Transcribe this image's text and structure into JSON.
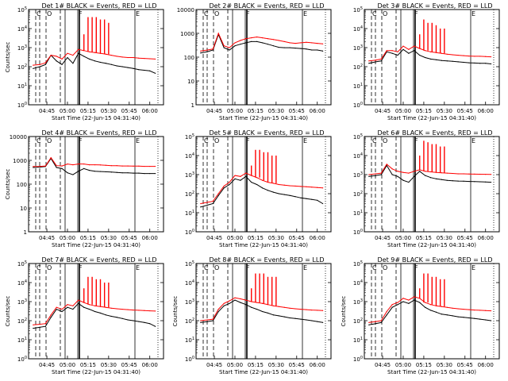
{
  "figure": {
    "title_text": "Det ## BLACK = Events, RED = LLD",
    "xlabel": "Start Time (22-Jun-15 04:31:40)",
    "ylabel": "Counts/sec",
    "x_tick_labels": [
      "04:45",
      "05:00",
      "05:15",
      "05:30",
      "05:45",
      "06:00"
    ]
  },
  "chart_data": [
    {
      "type": "line",
      "panel": 1,
      "title": "Det 1# BLACK = Events, RED = LLD",
      "xlabel": "Start Time (22-Jun-15 04:31:40)",
      "ylabel": "Counts/sec",
      "yscale": "log",
      "ylim": [
        1,
        100000
      ],
      "yticks": [
        "10^0",
        "10^1",
        "10^2",
        "10^3",
        "10^4",
        "10^5"
      ],
      "xlim": [
        "04:31:40",
        "06:10"
      ],
      "x": [
        "04:35",
        "04:40",
        "04:44",
        "04:48",
        "04:52",
        "04:56",
        "05:00",
        "05:04",
        "05:08",
        "05:12",
        "05:16",
        "05:20",
        "05:24",
        "05:28",
        "05:32",
        "05:36",
        "05:40",
        "05:44",
        "05:48",
        "05:52",
        "05:56",
        "06:00",
        "06:04"
      ],
      "series": [
        {
          "name": "BLACK = Events",
          "color": "#000000",
          "values": [
            80,
            100,
            130,
            400,
            200,
            130,
            300,
            150,
            500,
            350,
            250,
            200,
            170,
            150,
            130,
            110,
            100,
            90,
            80,
            70,
            65,
            60,
            45
          ]
        },
        {
          "name": "RED = LLD",
          "color": "#ff0000",
          "values": [
            120,
            130,
            160,
            400,
            350,
            250,
            500,
            400,
            800,
            700,
            600,
            550,
            500,
            450,
            400,
            350,
            320,
            300,
            300,
            280,
            270,
            260,
            250
          ]
        }
      ],
      "spikes": {
        "series": "RED = LLD",
        "x": [
          "05:12",
          "05:15",
          "05:18",
          "05:21",
          "05:24",
          "05:27",
          "05:30"
        ],
        "values": [
          5000,
          40000,
          40000,
          40000,
          30000,
          30000,
          20000
        ]
      }
    },
    {
      "type": "line",
      "panel": 2,
      "title": "Det 2# BLACK = Events, RED = LLD",
      "xlabel": "Start Time (22-Jun-15 04:31:40)",
      "ylabel": "",
      "yscale": "log",
      "ylim": [
        1,
        10000
      ],
      "yticks": [
        "1",
        "10",
        "100",
        "1000",
        "10000"
      ],
      "xlim": [
        "04:31:40",
        "06:10"
      ],
      "x": [
        "04:35",
        "04:40",
        "04:44",
        "04:48",
        "04:52",
        "04:56",
        "05:00",
        "05:04",
        "05:08",
        "05:12",
        "05:16",
        "05:20",
        "05:24",
        "05:28",
        "05:32",
        "05:36",
        "05:40",
        "05:44",
        "05:48",
        "05:52",
        "05:56",
        "06:00",
        "06:04"
      ],
      "series": [
        {
          "name": "BLACK = Events",
          "color": "#000000",
          "values": [
            150,
            170,
            200,
            900,
            250,
            200,
            300,
            350,
            400,
            450,
            450,
            400,
            350,
            300,
            260,
            250,
            250,
            240,
            230,
            220,
            200,
            200,
            180
          ]
        },
        {
          "name": "RED = LLD",
          "color": "#ff0000",
          "values": [
            180,
            200,
            220,
            1000,
            300,
            250,
            400,
            500,
            600,
            650,
            700,
            650,
            600,
            550,
            500,
            450,
            400,
            380,
            400,
            420,
            400,
            380,
            360
          ]
        }
      ]
    },
    {
      "type": "line",
      "panel": 3,
      "title": "Det 3# BLACK = Events, RED = LLD",
      "xlabel": "Start Time (22-Jun-15 04:31:40)",
      "ylabel": "",
      "yscale": "log",
      "ylim": [
        1,
        100000
      ],
      "yticks": [
        "10^0",
        "10^1",
        "10^2",
        "10^3",
        "10^4",
        "10^5"
      ],
      "xlim": [
        "04:31:40",
        "06:10"
      ],
      "x": [
        "04:35",
        "04:40",
        "04:44",
        "04:48",
        "04:52",
        "04:56",
        "05:00",
        "05:04",
        "05:08",
        "05:12",
        "05:16",
        "05:20",
        "05:24",
        "05:28",
        "05:32",
        "05:36",
        "05:40",
        "05:44",
        "05:48",
        "05:52",
        "05:56",
        "06:00",
        "06:04"
      ],
      "series": [
        {
          "name": "BLACK = Events",
          "color": "#000000",
          "values": [
            150,
            180,
            200,
            600,
            500,
            400,
            800,
            500,
            700,
            400,
            300,
            250,
            230,
            210,
            200,
            190,
            180,
            170,
            160,
            155,
            150,
            150,
            140
          ]
        },
        {
          "name": "RED = LLD",
          "color": "#ff0000",
          "values": [
            200,
            220,
            250,
            700,
            700,
            600,
            1200,
            800,
            1200,
            900,
            700,
            600,
            550,
            500,
            450,
            420,
            400,
            380,
            360,
            350,
            350,
            340,
            330
          ]
        }
      ],
      "spikes": {
        "series": "RED = LLD",
        "x": [
          "05:12",
          "05:15",
          "05:18",
          "05:21",
          "05:24",
          "05:27",
          "05:30"
        ],
        "values": [
          5000,
          30000,
          20000,
          20000,
          15000,
          10000,
          10000
        ]
      }
    },
    {
      "type": "line",
      "panel": 4,
      "title": "Det 4# BLACK = Events, RED = LLD",
      "xlabel": "Start Time (22-Jun-15 04:31:40)",
      "ylabel": "Counts/sec",
      "yscale": "log",
      "ylim": [
        1,
        10000
      ],
      "yticks": [
        "1",
        "10",
        "100",
        "1000",
        "10000"
      ],
      "xlim": [
        "04:31:40",
        "06:10"
      ],
      "x": [
        "04:35",
        "04:40",
        "04:44",
        "04:48",
        "04:52",
        "04:56",
        "05:00",
        "05:04",
        "05:08",
        "05:12",
        "05:16",
        "05:20",
        "05:24",
        "05:28",
        "05:32",
        "05:36",
        "05:40",
        "05:44",
        "05:48",
        "05:52",
        "05:56",
        "06:00",
        "06:04"
      ],
      "series": [
        {
          "name": "BLACK = Events",
          "color": "#000000",
          "values": [
            500,
            520,
            550,
            1200,
            500,
            450,
            300,
            250,
            350,
            450,
            380,
            350,
            340,
            330,
            320,
            310,
            300,
            300,
            290,
            290,
            280,
            280,
            280
          ]
        },
        {
          "name": "RED = LLD",
          "color": "#ff0000",
          "values": [
            550,
            560,
            580,
            1300,
            600,
            580,
            700,
            650,
            700,
            700,
            650,
            650,
            640,
            620,
            600,
            600,
            580,
            580,
            570,
            570,
            560,
            560,
            560
          ]
        }
      ]
    },
    {
      "type": "line",
      "panel": 5,
      "title": "Det 5# BLACK = Events, RED = LLD",
      "xlabel": "Start Time (22-Jun-15 04:31:40)",
      "ylabel": "",
      "yscale": "log",
      "ylim": [
        1,
        100000
      ],
      "yticks": [
        "10^0",
        "10^1",
        "10^2",
        "10^3",
        "10^4",
        "10^5"
      ],
      "xlim": [
        "04:31:40",
        "06:10"
      ],
      "x": [
        "04:35",
        "04:40",
        "04:44",
        "04:48",
        "04:52",
        "04:56",
        "05:00",
        "05:04",
        "05:08",
        "05:12",
        "05:16",
        "05:20",
        "05:24",
        "05:28",
        "05:32",
        "05:36",
        "05:40",
        "05:44",
        "05:48",
        "05:52",
        "05:56",
        "06:00",
        "06:04"
      ],
      "series": [
        {
          "name": "BLACK = Events",
          "color": "#000000",
          "values": [
            20,
            25,
            30,
            80,
            200,
            300,
            600,
            500,
            800,
            400,
            300,
            200,
            150,
            120,
            100,
            90,
            80,
            70,
            60,
            55,
            50,
            45,
            30
          ]
        },
        {
          "name": "RED = LLD",
          "color": "#ff0000",
          "values": [
            30,
            35,
            40,
            100,
            250,
            400,
            900,
            800,
            1200,
            900,
            700,
            500,
            400,
            350,
            300,
            280,
            260,
            250,
            240,
            230,
            220,
            210,
            200
          ]
        }
      ],
      "spikes": {
        "series": "RED = LLD",
        "x": [
          "05:12",
          "05:15",
          "05:18",
          "05:21",
          "05:24",
          "05:27",
          "05:30"
        ],
        "values": [
          3000,
          20000,
          20000,
          15000,
          15000,
          10000,
          10000
        ]
      }
    },
    {
      "type": "line",
      "panel": 6,
      "title": "Det 6# BLACK = Events, RED = LLD",
      "xlabel": "Start Time (22-Jun-15 04:31:40)",
      "ylabel": "",
      "yscale": "log",
      "ylim": [
        1,
        100000
      ],
      "yticks": [
        "10^0",
        "10^1",
        "10^2",
        "10^3",
        "10^4",
        "10^5"
      ],
      "xlim": [
        "04:31:40",
        "06:10"
      ],
      "x": [
        "04:35",
        "04:40",
        "04:44",
        "04:48",
        "04:52",
        "04:56",
        "05:00",
        "05:04",
        "05:08",
        "05:12",
        "05:16",
        "05:20",
        "05:24",
        "05:28",
        "05:32",
        "05:36",
        "05:40",
        "05:44",
        "05:48",
        "05:52",
        "05:56",
        "06:00",
        "06:04"
      ],
      "series": [
        {
          "name": "BLACK = Events",
          "color": "#000000",
          "values": [
            800,
            900,
            1000,
            3000,
            1000,
            800,
            500,
            400,
            800,
            1500,
            900,
            700,
            600,
            550,
            500,
            480,
            460,
            450,
            440,
            430,
            420,
            410,
            400
          ]
        },
        {
          "name": "RED = LLD",
          "color": "#ff0000",
          "values": [
            1000,
            1100,
            1200,
            3500,
            2000,
            1500,
            1300,
            1200,
            1500,
            1800,
            1500,
            1400,
            1300,
            1250,
            1200,
            1150,
            1100,
            1100,
            1080,
            1060,
            1050,
            1040,
            1030
          ]
        }
      ],
      "spikes": {
        "series": "RED = LLD",
        "x": [
          "05:12",
          "05:15",
          "05:18",
          "05:21",
          "05:24",
          "05:27",
          "05:30"
        ],
        "values": [
          10000,
          60000,
          50000,
          40000,
          40000,
          30000,
          30000
        ]
      }
    },
    {
      "type": "line",
      "panel": 7,
      "title": "Det 7# BLACK = Events, RED = LLD",
      "xlabel": "Start Time (22-Jun-15 04:31:40)",
      "ylabel": "Counts/sec",
      "yscale": "log",
      "ylim": [
        1,
        100000
      ],
      "yticks": [
        "10^0",
        "10^1",
        "10^2",
        "10^3",
        "10^4",
        "10^5"
      ],
      "xlim": [
        "04:31:40",
        "06:10"
      ],
      "x": [
        "04:35",
        "04:40",
        "04:44",
        "04:48",
        "04:52",
        "04:56",
        "05:00",
        "05:04",
        "05:08",
        "05:12",
        "05:16",
        "05:20",
        "05:24",
        "05:28",
        "05:32",
        "05:36",
        "05:40",
        "05:44",
        "05:48",
        "05:52",
        "05:56",
        "06:00",
        "06:04"
      ],
      "series": [
        {
          "name": "BLACK = Events",
          "color": "#000000",
          "values": [
            40,
            45,
            50,
            150,
            400,
            300,
            500,
            400,
            800,
            500,
            400,
            300,
            250,
            200,
            170,
            150,
            130,
            110,
            100,
            90,
            80,
            70,
            50
          ]
        },
        {
          "name": "RED = LLD",
          "color": "#ff0000",
          "values": [
            60,
            65,
            70,
            200,
            500,
            400,
            700,
            600,
            1200,
            900,
            700,
            600,
            550,
            500,
            450,
            420,
            400,
            380,
            360,
            350,
            340,
            330,
            320
          ]
        }
      ],
      "spikes": {
        "series": "RED = LLD",
        "x": [
          "05:12",
          "05:15",
          "05:18",
          "05:21",
          "05:24",
          "05:27",
          "05:30"
        ],
        "values": [
          5000,
          20000,
          20000,
          15000,
          15000,
          10000,
          10000
        ]
      }
    },
    {
      "type": "line",
      "panel": 8,
      "title": "Det 8# BLACK = Events, RED = LLD",
      "xlabel": "Start Time (22-Jun-15 04:31:40)",
      "ylabel": "Counts/sec",
      "yscale": "log",
      "ylim": [
        1,
        100000
      ],
      "yticks": [
        "10^0",
        "10^1",
        "10^2",
        "10^3",
        "10^4",
        "10^5"
      ],
      "xlim": [
        "04:31:40",
        "06:10"
      ],
      "x": [
        "04:35",
        "04:40",
        "04:44",
        "04:48",
        "04:52",
        "04:56",
        "05:00",
        "05:04",
        "05:08",
        "05:12",
        "05:16",
        "05:20",
        "05:24",
        "05:28",
        "05:32",
        "05:36",
        "05:40",
        "05:44",
        "05:48",
        "05:52",
        "05:56",
        "06:00",
        "06:04"
      ],
      "series": [
        {
          "name": "BLACK = Events",
          "color": "#000000",
          "values": [
            80,
            90,
            100,
            300,
            600,
            800,
            1200,
            900,
            700,
            500,
            400,
            300,
            250,
            200,
            180,
            160,
            140,
            130,
            120,
            110,
            100,
            90,
            80
          ]
        },
        {
          "name": "RED = LLD",
          "color": "#ff0000",
          "values": [
            100,
            110,
            120,
            400,
            800,
            1100,
            1600,
            1400,
            1200,
            1000,
            900,
            800,
            700,
            600,
            550,
            500,
            450,
            420,
            400,
            380,
            360,
            350,
            340
          ]
        }
      ],
      "spikes": {
        "series": "RED = LLD",
        "x": [
          "05:12",
          "05:15",
          "05:18",
          "05:21",
          "05:24",
          "05:27",
          "05:30"
        ],
        "values": [
          5000,
          30000,
          30000,
          30000,
          20000,
          20000,
          20000
        ]
      }
    },
    {
      "type": "line",
      "panel": 9,
      "title": "Det 9# BLACK = Events, RED = LLD",
      "xlabel": "Start Time (22-Jun-15 04:31:40)",
      "ylabel": "Counts/sec",
      "yscale": "log",
      "ylim": [
        1,
        100000
      ],
      "yticks": [
        "10^0",
        "10^1",
        "10^2",
        "10^3",
        "10^4",
        "10^5"
      ],
      "xlim": [
        "04:31:40",
        "06:10"
      ],
      "x": [
        "04:35",
        "04:40",
        "04:44",
        "04:48",
        "04:52",
        "04:56",
        "05:00",
        "05:04",
        "05:08",
        "05:12",
        "05:16",
        "05:20",
        "05:24",
        "05:28",
        "05:32",
        "05:36",
        "05:40",
        "05:44",
        "05:48",
        "05:52",
        "05:56",
        "06:00",
        "06:04"
      ],
      "series": [
        {
          "name": "BLACK = Events",
          "color": "#000000",
          "values": [
            60,
            70,
            80,
            200,
            500,
            700,
            1000,
            800,
            1200,
            900,
            500,
            350,
            280,
            220,
            200,
            180,
            160,
            150,
            140,
            130,
            120,
            110,
            100
          ]
        },
        {
          "name": "RED = LLD",
          "color": "#ff0000",
          "values": [
            80,
            90,
            100,
            300,
            700,
            900,
            1500,
            1200,
            1800,
            1500,
            900,
            700,
            600,
            550,
            500,
            450,
            420,
            400,
            380,
            360,
            350,
            340,
            330
          ]
        }
      ],
      "spikes": {
        "series": "RED = LLD",
        "x": [
          "05:12",
          "05:15",
          "05:18",
          "05:21",
          "05:24",
          "05:27",
          "05:30"
        ],
        "values": [
          5000,
          30000,
          30000,
          20000,
          20000,
          15000,
          15000
        ]
      }
    }
  ]
}
